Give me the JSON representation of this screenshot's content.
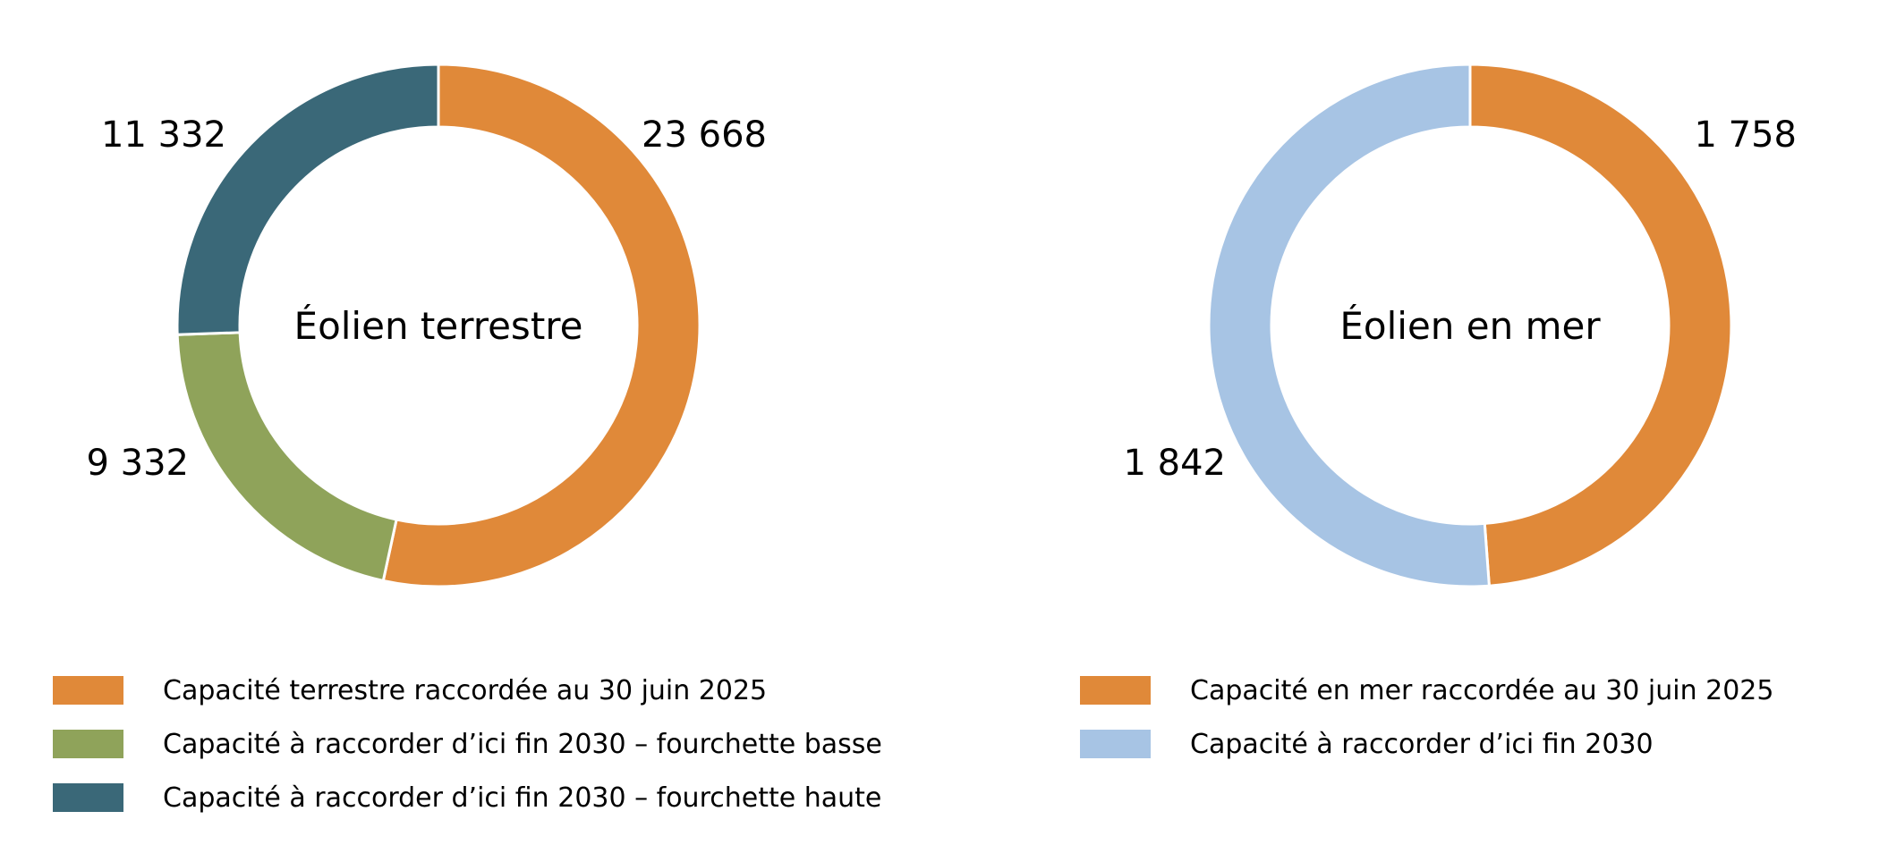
{
  "chart_data": [
    {
      "type": "pie",
      "center_label": "Éolien terrestre",
      "start_angle_deg": 0,
      "slices": [
        {
          "label": "Capacité terrestre raccordée au 30 juin 2025",
          "value": 23668,
          "value_label": "23 668",
          "color": "#E08939"
        },
        {
          "label": "Capacité à raccorder d’ici fin 2030 – fourchette basse",
          "value": 9332,
          "value_label": "9 332",
          "color": "#8FA35A"
        },
        {
          "label": "Capacité à raccorder d’ici fin 2030 – fourchette haute",
          "value": 11332,
          "value_label": "11 332",
          "color": "#3A6878"
        }
      ]
    },
    {
      "type": "pie",
      "center_label": "Éolien en mer",
      "start_angle_deg": 0,
      "slices": [
        {
          "label": "Capacité en mer raccordée au 30 juin 2025",
          "value": 1758,
          "value_label": "1 758",
          "color": "#E08939"
        },
        {
          "label": "Capacité à raccorder d’ici fin 2030",
          "value": 1842,
          "value_label": "1 842",
          "color": "#A7C4E4"
        }
      ]
    }
  ]
}
